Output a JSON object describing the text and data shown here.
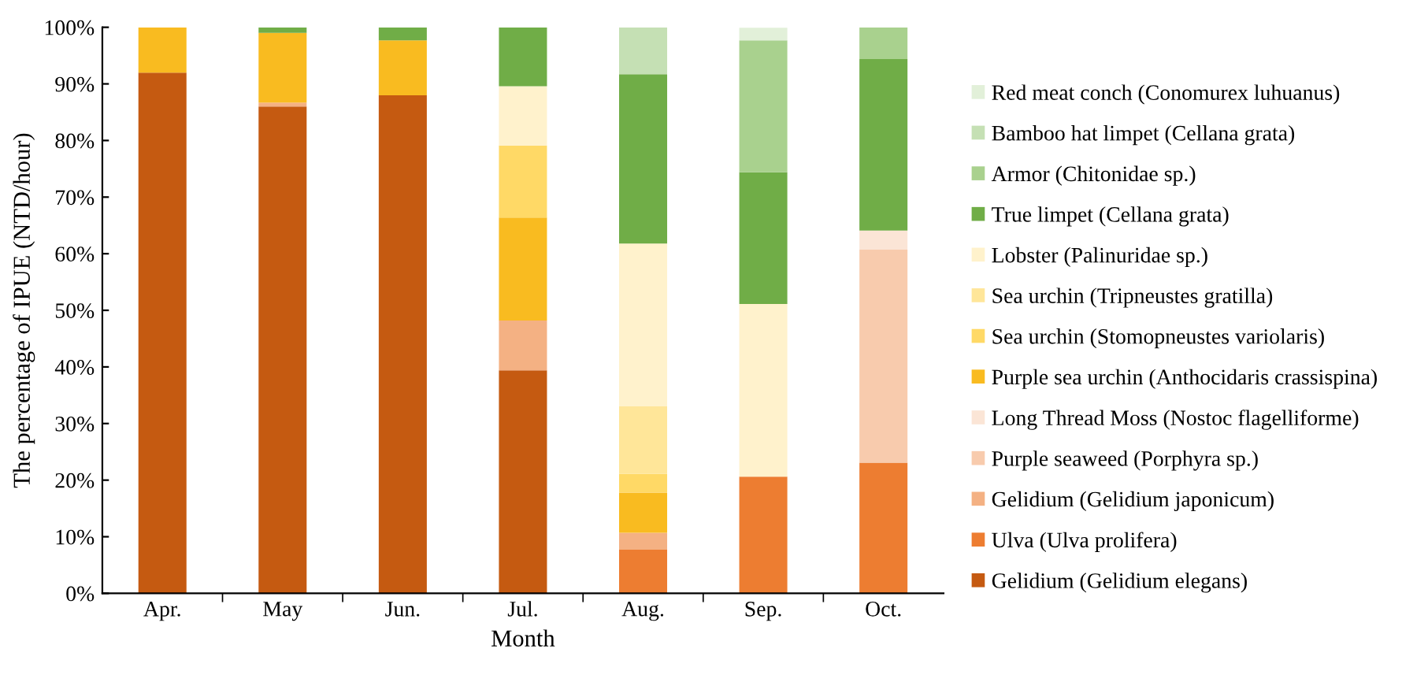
{
  "chart_data": {
    "type": "bar",
    "stacked": true,
    "xlabel": "Month",
    "ylabel": "The percentage of IPUE (NTD/hour)",
    "categories": [
      "Apr.",
      "May",
      "Jun.",
      "Jul.",
      "Aug.",
      "Sep.",
      "Oct."
    ],
    "ylim": [
      0,
      100
    ],
    "yticks": [
      {
        "value": 0,
        "label": "0%"
      },
      {
        "value": 10,
        "label": "10%"
      },
      {
        "value": 20,
        "label": "20%"
      },
      {
        "value": 30,
        "label": "30%"
      },
      {
        "value": 40,
        "label": "40%"
      },
      {
        "value": 50,
        "label": "50%"
      },
      {
        "value": 60,
        "label": "60%"
      },
      {
        "value": 70,
        "label": "70%"
      },
      {
        "value": 80,
        "label": "80%"
      },
      {
        "value": 90,
        "label": "90%"
      },
      {
        "value": 100,
        "label": "100%"
      }
    ],
    "grid": false,
    "legend": "right",
    "series": [
      {
        "name": "Gelidium (Gelidium elegans)",
        "color": "#c55a11",
        "values": [
          92,
          86,
          88,
          39.4,
          null,
          null,
          null
        ]
      },
      {
        "name": "Ulva (Ulva prolifera)",
        "color": "#ed7d31",
        "values": [
          null,
          null,
          null,
          null,
          7.7,
          20.6,
          23.1
        ]
      },
      {
        "name": "Gelidium (Gelidium japonicum)",
        "color": "#f4b183",
        "values": [
          null,
          0.7,
          null,
          8.8,
          3.0,
          null,
          null
        ]
      },
      {
        "name": "Purple seaweed (Porphyra sp.)",
        "color": "#f8cbad",
        "values": [
          null,
          null,
          null,
          null,
          null,
          null,
          37.6
        ]
      },
      {
        "name": "Long Thread Moss (Nostoc flagelliforme)",
        "color": "#fbe5d6",
        "values": [
          null,
          null,
          null,
          null,
          null,
          null,
          3.4
        ]
      },
      {
        "name": "Purple sea urchin (Anthocidaris crassispina)",
        "color": "#f9bb20",
        "values": [
          8,
          12.3,
          9.7,
          18.2,
          7.1,
          null,
          null
        ]
      },
      {
        "name": "Sea urchin (Stomopneustes variolaris)",
        "color": "#ffd966",
        "values": [
          null,
          null,
          null,
          12.7,
          3.3,
          null,
          null
        ]
      },
      {
        "name": "Sea urchin (Tripneustes gratilla)",
        "color": "#ffe699",
        "values": [
          null,
          null,
          null,
          null,
          12.0,
          null,
          null
        ]
      },
      {
        "name": "Lobster (Palinuridae sp.)",
        "color": "#fff2cc",
        "values": [
          null,
          null,
          null,
          10.5,
          28.7,
          30.5,
          null
        ]
      },
      {
        "name": "True limpet (Cellana grata)",
        "color": "#70ad47",
        "values": [
          null,
          1,
          2.3,
          10.4,
          29.9,
          23.3,
          30.3
        ]
      },
      {
        "name": "Armor (Chitonidae sp.)",
        "color": "#a9d18e",
        "values": [
          null,
          null,
          null,
          null,
          null,
          23.3,
          5.6
        ]
      },
      {
        "name": "Bamboo hat limpet (Cellana grata)",
        "color": "#c5e0b4",
        "values": [
          null,
          null,
          null,
          null,
          8.3,
          null,
          null
        ]
      },
      {
        "name": "Red meat conch (Conomurex luhuanus)",
        "color": "#e2f0d9",
        "values": [
          null,
          null,
          null,
          null,
          null,
          2.2,
          null
        ]
      }
    ]
  }
}
